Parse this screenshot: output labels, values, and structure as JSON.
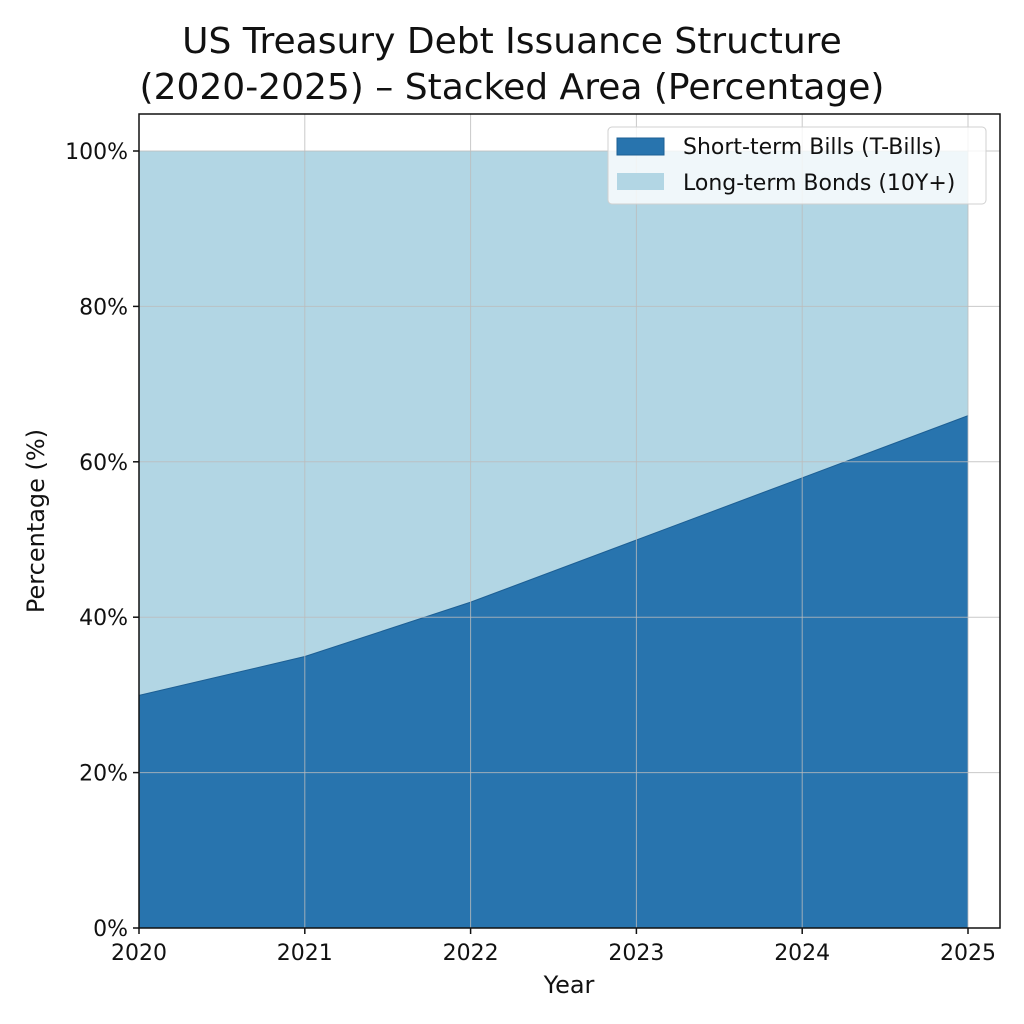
{
  "chart_data": {
    "type": "area",
    "stacked": true,
    "title": "US Treasury Debt Issuance Structure (2020-2025) – Stacked Area (Percentage)",
    "title_lines": [
      "US Treasury Debt Issuance Structure",
      "(2020-2025) – Stacked Area (Percentage)"
    ],
    "xlabel": "Year",
    "ylabel": "Percentage (%)",
    "x": [
      2020,
      2021,
      2022,
      2023,
      2024,
      2025
    ],
    "x_tick_labels": [
      "2020",
      "2021",
      "2022",
      "2023",
      "2024",
      "2025"
    ],
    "y_tick_labels": [
      "0%",
      "20%",
      "40%",
      "60%",
      "80%",
      "100%"
    ],
    "ylim": [
      0,
      105
    ],
    "grid": true,
    "legend_position": "upper right",
    "series": [
      {
        "name": "Short-term Bills (T-Bills)",
        "color": "#2874ae",
        "values": [
          30,
          35,
          42,
          50,
          58,
          66
        ]
      },
      {
        "name": "Long-term Bonds (10Y+)",
        "color": "#b2d6e4",
        "values": [
          70,
          65,
          58,
          50,
          42,
          34
        ]
      }
    ]
  }
}
